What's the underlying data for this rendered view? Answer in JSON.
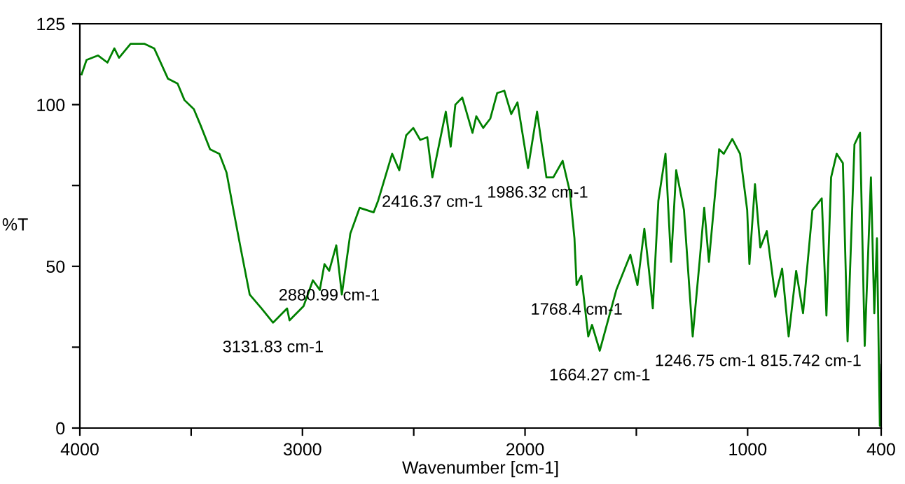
{
  "chart_data": {
    "type": "line",
    "xlabel": "Wavenumber [cm-1]",
    "ylabel": "%T",
    "series": [
      {
        "color": "#008000",
        "x": [
          3992,
          3970,
          3918,
          3876,
          3845,
          3824,
          3772,
          3709,
          3666,
          3604,
          3561,
          3530,
          3488,
          3457,
          3415,
          3373,
          3341,
          3310,
          3278,
          3237,
          3184,
          3131.83,
          3069,
          3058,
          2995,
          2953,
          2922,
          2901,
          2880,
          2848,
          2823,
          2785,
          2743,
          2680,
          2660,
          2597,
          2565,
          2534,
          2502,
          2471,
          2439,
          2416.37,
          2356,
          2334,
          2313,
          2282,
          2236,
          2219,
          2188,
          2156,
          2125,
          2093,
          2062,
          2034,
          1986.32,
          1946,
          1904,
          1873,
          1831,
          1799,
          1778,
          1768.4,
          1747,
          1716,
          1699,
          1664.27,
          1590,
          1527,
          1495,
          1464,
          1443,
          1426,
          1401,
          1369,
          1344,
          1321,
          1286,
          1246.75,
          1216,
          1195,
          1174,
          1128,
          1107,
          1069,
          1034,
          1002,
          992,
          967,
          943,
          914,
          876,
          845,
          815.742,
          782,
          751,
          709,
          667,
          646,
          625,
          600,
          572,
          551,
          520,
          495,
          474,
          446,
          431,
          419,
          406,
          400
        ],
        "values": [
          109.4,
          113.8,
          115.2,
          113,
          117.4,
          114.5,
          118.8,
          118.8,
          117.4,
          108,
          106.5,
          101.4,
          98.6,
          93.5,
          86.2,
          84.8,
          79,
          67.4,
          55.8,
          41.3,
          37,
          32.6,
          37,
          33.3,
          37.7,
          45.7,
          42.7,
          50.7,
          48.6,
          56.5,
          41.3,
          60.1,
          68.1,
          66.7,
          70.3,
          84.8,
          79.7,
          90.5,
          92.8,
          89.1,
          89.9,
          77.5,
          97.8,
          87,
          100,
          102.2,
          91.3,
          96.4,
          92.8,
          95.7,
          103.6,
          104.3,
          97.1,
          100.7,
          80.4,
          97.8,
          77.5,
          77.5,
          82.6,
          73.2,
          58.7,
          44.2,
          47.1,
          28.3,
          31.9,
          23.9,
          42.7,
          53.6,
          44.2,
          61.6,
          48.6,
          37,
          70.3,
          84.8,
          51.4,
          79.7,
          67.4,
          28.3,
          51.4,
          68.1,
          51.4,
          86.2,
          84.8,
          89.4,
          84.8,
          67.4,
          50.7,
          75.4,
          55.8,
          60.9,
          40.6,
          49.3,
          28.3,
          48.6,
          35.5,
          67.4,
          71,
          34.8,
          77.5,
          84.8,
          81.9,
          26.8,
          87.7,
          91.3,
          25.4,
          77.5,
          35.5,
          58.7,
          0.7,
          19.6
        ]
      }
    ],
    "xlim": [
      4000,
      400
    ],
    "ylim": [
      0,
      125
    ],
    "xticks": [
      4000,
      {
        "value": 3500,
        "label": null
      },
      3000,
      {
        "value": 2500,
        "label": null
      },
      2000,
      {
        "value": 1500,
        "label": null
      },
      1000,
      {
        "value": 500,
        "label": null
      },
      400
    ],
    "yticks": [
      0,
      {
        "value": 25,
        "label": null
      },
      50,
      {
        "value": 75,
        "label": null
      },
      100,
      125
    ],
    "grid": false,
    "legend": false,
    "annotations": [
      {
        "text": "3131.83 cm-1",
        "x": 3131.83,
        "y": 32.6
      },
      {
        "text": "2880.99 cm-1",
        "x": 2880,
        "y": 48.6
      },
      {
        "text": "2416.37 cm-1",
        "x": 2416.37,
        "y": 77.5
      },
      {
        "text": "1986.32 cm-1",
        "x": 1986.32,
        "y": 80.4
      },
      {
        "text": "1768.4 cm-1",
        "x": 1768.4,
        "y": 44.2
      },
      {
        "text": "1664.27 cm-1",
        "x": 1664.27,
        "y": 23.9
      },
      {
        "text": "1246.75 cm-1",
        "x": 1246.75,
        "y": 28.3
      },
      {
        "text": "815.742 cm-1",
        "x": 815.742,
        "y": 28.3
      }
    ]
  }
}
